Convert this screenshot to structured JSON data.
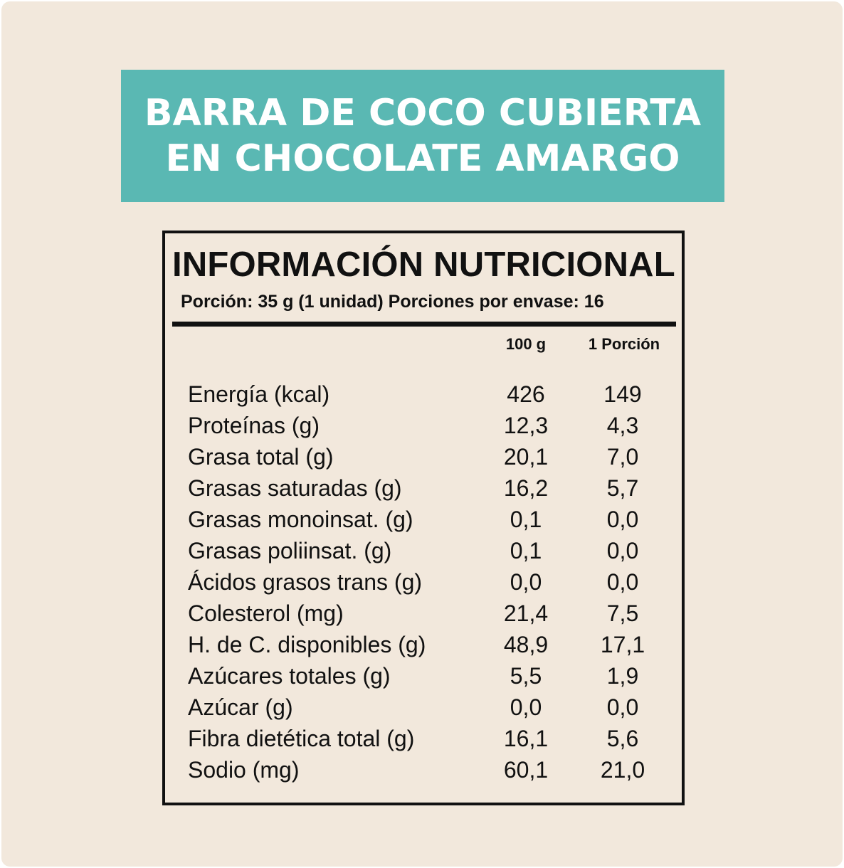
{
  "product": {
    "title_line_1": "BARRA DE COCO CUBIERTA",
    "title_line_2": "EN CHOCOLATE AMARGO"
  },
  "colors": {
    "banner": "#5ab8b3",
    "background": "#f2e8dc",
    "text": "#111111"
  },
  "nutrition": {
    "heading": "INFORMACIÓN NUTRICIONAL",
    "serving": "Porción: 35 g (1 unidad) Porciones por envase: 16",
    "columns": [
      "100 g",
      "1 Porción"
    ],
    "rows": [
      {
        "label": "Energía (kcal)",
        "per100": "426",
        "perServing": "149"
      },
      {
        "label": "Proteínas (g)",
        "per100": "12,3",
        "perServing": "4,3"
      },
      {
        "label": "Grasa total (g)",
        "per100": "20,1",
        "perServing": "7,0"
      },
      {
        "label": "Grasas saturadas (g)",
        "per100": "16,2",
        "perServing": "5,7"
      },
      {
        "label": "Grasas monoinsat. (g)",
        "per100": "0,1",
        "perServing": "0,0"
      },
      {
        "label": "Grasas poliinsat. (g)",
        "per100": "0,1",
        "perServing": "0,0"
      },
      {
        "label": "Ácidos grasos trans (g)",
        "per100": "0,0",
        "perServing": "0,0"
      },
      {
        "label": "Colesterol (mg)",
        "per100": "21,4",
        "perServing": "7,5"
      },
      {
        "label": "H. de C. disponibles (g)",
        "per100": "48,9",
        "perServing": "17,1"
      },
      {
        "label": "Azúcares totales (g)",
        "per100": "5,5",
        "perServing": "1,9"
      },
      {
        "label": "Azúcar (g)",
        "per100": "0,0",
        "perServing": "0,0"
      },
      {
        "label": "Fibra dietética total (g)",
        "per100": "16,1",
        "perServing": "5,6"
      },
      {
        "label": "Sodio (mg)",
        "per100": "60,1",
        "perServing": "21,0"
      }
    ]
  }
}
